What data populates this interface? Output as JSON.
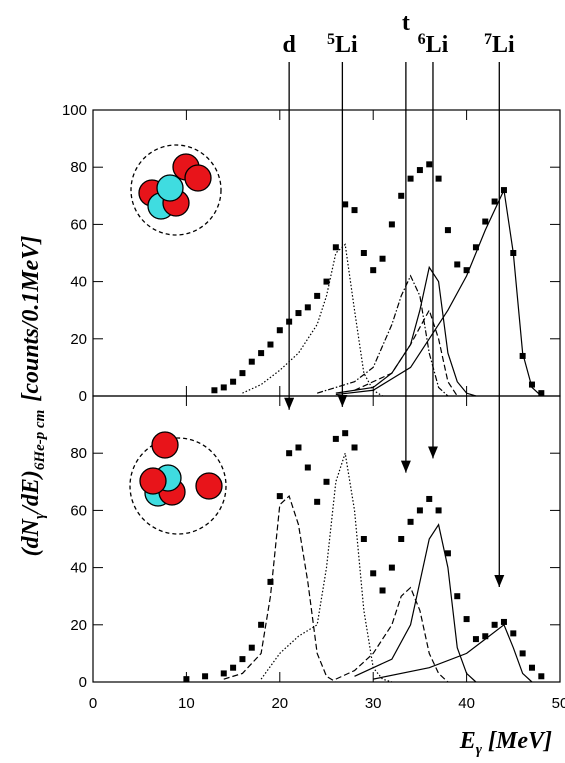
{
  "chart_data": [
    {
      "type": "scatter",
      "xlim": [
        0,
        50
      ],
      "ylim": [
        0,
        100
      ],
      "xticks": [
        0,
        10,
        20,
        30,
        40,
        50
      ],
      "yticks": [
        0,
        20,
        40,
        60,
        80,
        100
      ],
      "series": [
        {
          "style": "points",
          "x": [
            13,
            14,
            15,
            16,
            17,
            18,
            19,
            20,
            21,
            22,
            23,
            24,
            25,
            26,
            27,
            28,
            29,
            30,
            31,
            32,
            33,
            34,
            35,
            36,
            37,
            38,
            39,
            40,
            41,
            42,
            43,
            44,
            45,
            46,
            47,
            48
          ],
          "values": [
            2,
            3,
            5,
            8,
            12,
            15,
            18,
            23,
            26,
            29,
            31,
            35,
            40,
            52,
            67,
            65,
            50,
            44,
            48,
            60,
            70,
            76,
            79,
            81,
            76,
            58,
            46,
            44,
            52,
            61,
            68,
            72,
            50,
            14,
            4,
            1
          ]
        },
        {
          "style": "dotted",
          "x": [
            16,
            18,
            20,
            22,
            24,
            25,
            26,
            27,
            28,
            29,
            30,
            31
          ],
          "values": [
            1,
            4,
            9,
            15,
            25,
            35,
            50,
            53,
            30,
            8,
            2,
            0
          ]
        },
        {
          "style": "dash-dot",
          "x": [
            24,
            28,
            30,
            32,
            33,
            34,
            35,
            36,
            37,
            38
          ],
          "values": [
            1,
            5,
            10,
            25,
            35,
            42,
            35,
            15,
            3,
            0
          ]
        },
        {
          "style": "dashed",
          "x": [
            28,
            32,
            34,
            36,
            37,
            38,
            39
          ],
          "values": [
            2,
            8,
            18,
            30,
            20,
            5,
            0
          ]
        },
        {
          "style": "solid",
          "x": [
            26,
            30,
            32,
            34,
            35,
            36,
            37,
            38,
            39,
            40,
            41
          ],
          "values": [
            1,
            3,
            8,
            18,
            30,
            45,
            40,
            15,
            5,
            1,
            0
          ]
        },
        {
          "style": "solid",
          "x": [
            26,
            30,
            34,
            36,
            38,
            40,
            42,
            44,
            45,
            46,
            47,
            48
          ],
          "values": [
            0.5,
            2,
            10,
            20,
            30,
            42,
            58,
            72,
            50,
            15,
            3,
            0
          ]
        }
      ]
    },
    {
      "type": "scatter",
      "xlim": [
        0,
        50
      ],
      "ylim": [
        0,
        100
      ],
      "xticks": [
        0,
        10,
        20,
        30,
        40,
        50
      ],
      "yticks": [
        0,
        20,
        40,
        60,
        80
      ],
      "series": [
        {
          "style": "points",
          "x": [
            10,
            12,
            14,
            15,
            16,
            17,
            18,
            19,
            20,
            21,
            22,
            23,
            24,
            25,
            26,
            27,
            28,
            29,
            30,
            31,
            32,
            33,
            34,
            35,
            36,
            37,
            38,
            39,
            40,
            41,
            42,
            43,
            44,
            45,
            46,
            47,
            48
          ],
          "values": [
            1,
            2,
            3,
            5,
            8,
            12,
            20,
            35,
            65,
            80,
            82,
            75,
            63,
            70,
            85,
            87,
            82,
            50,
            38,
            32,
            40,
            50,
            56,
            60,
            64,
            60,
            45,
            30,
            22,
            15,
            16,
            20,
            21,
            17,
            10,
            5,
            2
          ]
        },
        {
          "style": "dashed",
          "x": [
            14,
            16,
            18,
            19,
            20,
            21,
            22,
            23,
            24,
            25,
            26
          ],
          "values": [
            1,
            3,
            10,
            30,
            62,
            65,
            55,
            35,
            10,
            2,
            0
          ]
        },
        {
          "style": "dotted",
          "x": [
            18,
            20,
            22,
            24,
            25,
            26,
            27,
            28,
            29,
            30,
            31,
            32
          ],
          "values": [
            1,
            10,
            16,
            20,
            40,
            70,
            80,
            60,
            25,
            5,
            1,
            0
          ]
        },
        {
          "style": "dashed",
          "x": [
            26,
            28,
            30,
            32,
            33,
            34,
            35,
            36,
            37,
            38
          ],
          "values": [
            1,
            4,
            10,
            20,
            30,
            33,
            25,
            10,
            3,
            0
          ]
        },
        {
          "style": "solid",
          "x": [
            28,
            32,
            34,
            35,
            36,
            37,
            38,
            39,
            40,
            41
          ],
          "values": [
            2,
            8,
            20,
            35,
            50,
            55,
            40,
            12,
            3,
            0
          ]
        },
        {
          "style": "solid",
          "x": [
            30,
            36,
            40,
            42,
            44,
            45,
            46,
            47
          ],
          "values": [
            1,
            5,
            10,
            15,
            20,
            12,
            3,
            0
          ]
        }
      ]
    }
  ],
  "annotations": [
    {
      "label": "d",
      "x": 21,
      "y": 91
    },
    {
      "sup": "5",
      "label": "Li",
      "x": 26.7,
      "y": 92
    },
    {
      "label": "t",
      "x": 33.5,
      "y": 69
    },
    {
      "sup": "6",
      "label": "Li",
      "x": 36.4,
      "y": 74
    },
    {
      "sup": "7",
      "label": "Li",
      "x": 43.5,
      "y": 29
    }
  ],
  "y_label": {
    "main": "(dN",
    "sub1": "γ",
    "mid": "/dE)",
    "sub2": "6He-p cm",
    "unit": "[counts/0.1MeV]"
  },
  "x_label": {
    "main": "E",
    "sub": "γ",
    "unit": "[MeV]"
  }
}
